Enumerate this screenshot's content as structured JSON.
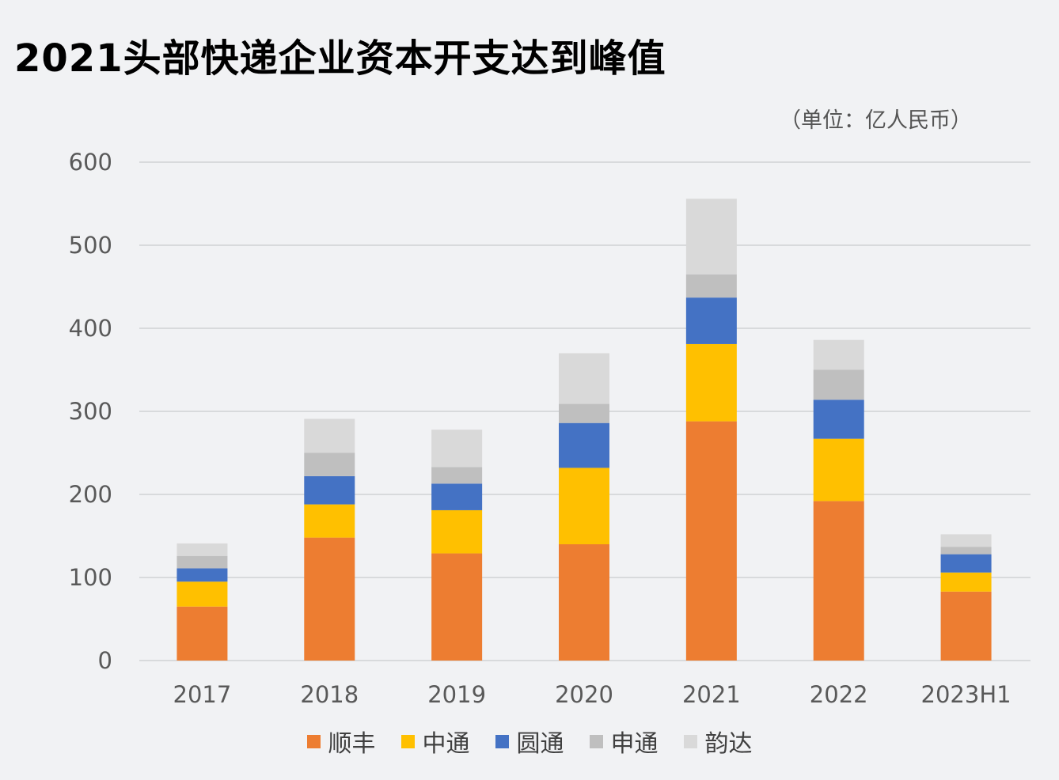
{
  "chart_data": {
    "type": "bar",
    "stacked": true,
    "title": "2021头部快递企业资本开支达到峰值",
    "unit_label": "（单位：亿人民币）",
    "xlabel": "",
    "ylabel": "",
    "ylim": [
      0,
      600
    ],
    "yticks": [
      0,
      100,
      200,
      300,
      400,
      500,
      600
    ],
    "grid": true,
    "legend_position": "bottom",
    "categories": [
      "2017",
      "2018",
      "2019",
      "2020",
      "2021",
      "2022",
      "2023H1"
    ],
    "series": [
      {
        "name": "顺丰",
        "color": "#ed7d31",
        "values": [
          65,
          148,
          129,
          140,
          288,
          192,
          83
        ]
      },
      {
        "name": "中通",
        "color": "#ffc000",
        "values": [
          30,
          40,
          52,
          92,
          93,
          75,
          23
        ]
      },
      {
        "name": "圆通",
        "color": "#4472c4",
        "values": [
          16,
          34,
          32,
          54,
          56,
          47,
          22
        ]
      },
      {
        "name": "申通",
        "color": "#bfbfbf",
        "values": [
          15,
          28,
          20,
          23,
          28,
          36,
          9
        ]
      },
      {
        "name": "韵达",
        "color": "#d9d9d9",
        "values": [
          15,
          41,
          45,
          61,
          91,
          36,
          15
        ]
      }
    ]
  }
}
